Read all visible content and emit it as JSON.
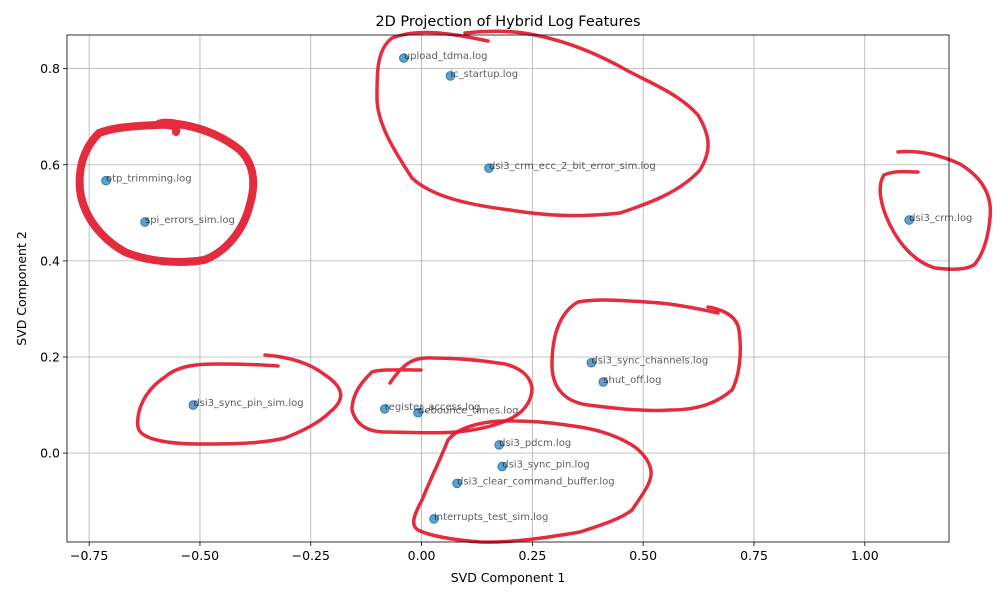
{
  "chart_data": {
    "type": "scatter",
    "title": "2D Projection of Hybrid Log Features",
    "xlabel": "SVD Component 1",
    "ylabel": "SVD Component 2",
    "xlim": [
      -0.8,
      1.19
    ],
    "ylim": [
      -0.185,
      0.87
    ],
    "x_ticks": [
      -0.75,
      -0.5,
      -0.25,
      0.0,
      0.25,
      0.5,
      0.75,
      1.0
    ],
    "x_tick_labels": [
      "−0.75",
      "−0.50",
      "−0.25",
      "0.00",
      "0.25",
      "0.50",
      "0.75",
      "1.00"
    ],
    "y_ticks": [
      0.0,
      0.2,
      0.4,
      0.6,
      0.8
    ],
    "y_tick_labels": [
      "0.0",
      "0.2",
      "0.4",
      "0.6",
      "0.8"
    ],
    "grid": true,
    "point_color": "#1f77b4",
    "annotation_color": "#e31a2f",
    "points": [
      {
        "label": "upload_tdma.log",
        "x": -0.04,
        "y": 0.822
      },
      {
        "label": "ic_startup.log",
        "x": 0.065,
        "y": 0.785
      },
      {
        "label": "dsi3_crm_ecc_2_bit_error_sim.log",
        "x": 0.152,
        "y": 0.593
      },
      {
        "label": "otp_trimming.log",
        "x": -0.712,
        "y": 0.567
      },
      {
        "label": "spi_errors_sim.log",
        "x": -0.624,
        "y": 0.481
      },
      {
        "label": "dsi3_crm.log",
        "x": 1.1,
        "y": 0.485
      },
      {
        "label": "dsi3_sync_channels.log",
        "x": 0.383,
        "y": 0.188
      },
      {
        "label": "shut_off.log",
        "x": 0.41,
        "y": 0.148
      },
      {
        "label": "dsi3_sync_pin_sim.log",
        "x": -0.515,
        "y": 0.1
      },
      {
        "label": "register_access.log",
        "x": -0.083,
        "y": 0.092
      },
      {
        "label": "debounce_times.log",
        "x": -0.008,
        "y": 0.084
      },
      {
        "label": "dsi3_pdcm.log",
        "x": 0.175,
        "y": 0.017
      },
      {
        "label": "dsi3_sync_pin.log",
        "x": 0.182,
        "y": -0.028
      },
      {
        "label": "dsi3_clear_command_buffer.log",
        "x": 0.08,
        "y": -0.063
      },
      {
        "label": "interrupts_test_sim.log",
        "x": 0.028,
        "y": -0.137
      }
    ]
  }
}
